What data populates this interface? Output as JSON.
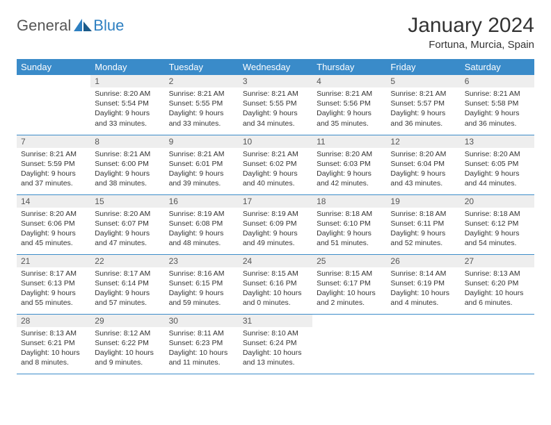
{
  "logo": {
    "general": "General",
    "blue": "Blue"
  },
  "title": "January 2024",
  "location": "Fortuna, Murcia, Spain",
  "colors": {
    "header_bg": "#3a8bc9",
    "header_fg": "#ffffff",
    "daynum_bg": "#eeeeee",
    "row_border": "#3a8bc9",
    "logo_blue": "#2d7fc1"
  },
  "weekdays": [
    "Sunday",
    "Monday",
    "Tuesday",
    "Wednesday",
    "Thursday",
    "Friday",
    "Saturday"
  ],
  "weeks": [
    [
      null,
      {
        "n": "1",
        "sunrise": "8:20 AM",
        "sunset": "5:54 PM",
        "daylight": "9 hours and 33 minutes."
      },
      {
        "n": "2",
        "sunrise": "8:21 AM",
        "sunset": "5:55 PM",
        "daylight": "9 hours and 33 minutes."
      },
      {
        "n": "3",
        "sunrise": "8:21 AM",
        "sunset": "5:55 PM",
        "daylight": "9 hours and 34 minutes."
      },
      {
        "n": "4",
        "sunrise": "8:21 AM",
        "sunset": "5:56 PM",
        "daylight": "9 hours and 35 minutes."
      },
      {
        "n": "5",
        "sunrise": "8:21 AM",
        "sunset": "5:57 PM",
        "daylight": "9 hours and 36 minutes."
      },
      {
        "n": "6",
        "sunrise": "8:21 AM",
        "sunset": "5:58 PM",
        "daylight": "9 hours and 36 minutes."
      }
    ],
    [
      {
        "n": "7",
        "sunrise": "8:21 AM",
        "sunset": "5:59 PM",
        "daylight": "9 hours and 37 minutes."
      },
      {
        "n": "8",
        "sunrise": "8:21 AM",
        "sunset": "6:00 PM",
        "daylight": "9 hours and 38 minutes."
      },
      {
        "n": "9",
        "sunrise": "8:21 AM",
        "sunset": "6:01 PM",
        "daylight": "9 hours and 39 minutes."
      },
      {
        "n": "10",
        "sunrise": "8:21 AM",
        "sunset": "6:02 PM",
        "daylight": "9 hours and 40 minutes."
      },
      {
        "n": "11",
        "sunrise": "8:20 AM",
        "sunset": "6:03 PM",
        "daylight": "9 hours and 42 minutes."
      },
      {
        "n": "12",
        "sunrise": "8:20 AM",
        "sunset": "6:04 PM",
        "daylight": "9 hours and 43 minutes."
      },
      {
        "n": "13",
        "sunrise": "8:20 AM",
        "sunset": "6:05 PM",
        "daylight": "9 hours and 44 minutes."
      }
    ],
    [
      {
        "n": "14",
        "sunrise": "8:20 AM",
        "sunset": "6:06 PM",
        "daylight": "9 hours and 45 minutes."
      },
      {
        "n": "15",
        "sunrise": "8:20 AM",
        "sunset": "6:07 PM",
        "daylight": "9 hours and 47 minutes."
      },
      {
        "n": "16",
        "sunrise": "8:19 AM",
        "sunset": "6:08 PM",
        "daylight": "9 hours and 48 minutes."
      },
      {
        "n": "17",
        "sunrise": "8:19 AM",
        "sunset": "6:09 PM",
        "daylight": "9 hours and 49 minutes."
      },
      {
        "n": "18",
        "sunrise": "8:18 AM",
        "sunset": "6:10 PM",
        "daylight": "9 hours and 51 minutes."
      },
      {
        "n": "19",
        "sunrise": "8:18 AM",
        "sunset": "6:11 PM",
        "daylight": "9 hours and 52 minutes."
      },
      {
        "n": "20",
        "sunrise": "8:18 AM",
        "sunset": "6:12 PM",
        "daylight": "9 hours and 54 minutes."
      }
    ],
    [
      {
        "n": "21",
        "sunrise": "8:17 AM",
        "sunset": "6:13 PM",
        "daylight": "9 hours and 55 minutes."
      },
      {
        "n": "22",
        "sunrise": "8:17 AM",
        "sunset": "6:14 PM",
        "daylight": "9 hours and 57 minutes."
      },
      {
        "n": "23",
        "sunrise": "8:16 AM",
        "sunset": "6:15 PM",
        "daylight": "9 hours and 59 minutes."
      },
      {
        "n": "24",
        "sunrise": "8:15 AM",
        "sunset": "6:16 PM",
        "daylight": "10 hours and 0 minutes."
      },
      {
        "n": "25",
        "sunrise": "8:15 AM",
        "sunset": "6:17 PM",
        "daylight": "10 hours and 2 minutes."
      },
      {
        "n": "26",
        "sunrise": "8:14 AM",
        "sunset": "6:19 PM",
        "daylight": "10 hours and 4 minutes."
      },
      {
        "n": "27",
        "sunrise": "8:13 AM",
        "sunset": "6:20 PM",
        "daylight": "10 hours and 6 minutes."
      }
    ],
    [
      {
        "n": "28",
        "sunrise": "8:13 AM",
        "sunset": "6:21 PM",
        "daylight": "10 hours and 8 minutes."
      },
      {
        "n": "29",
        "sunrise": "8:12 AM",
        "sunset": "6:22 PM",
        "daylight": "10 hours and 9 minutes."
      },
      {
        "n": "30",
        "sunrise": "8:11 AM",
        "sunset": "6:23 PM",
        "daylight": "10 hours and 11 minutes."
      },
      {
        "n": "31",
        "sunrise": "8:10 AM",
        "sunset": "6:24 PM",
        "daylight": "10 hours and 13 minutes."
      },
      null,
      null,
      null
    ]
  ],
  "labels": {
    "sunrise": "Sunrise: ",
    "sunset": "Sunset: ",
    "daylight": "Daylight: "
  }
}
